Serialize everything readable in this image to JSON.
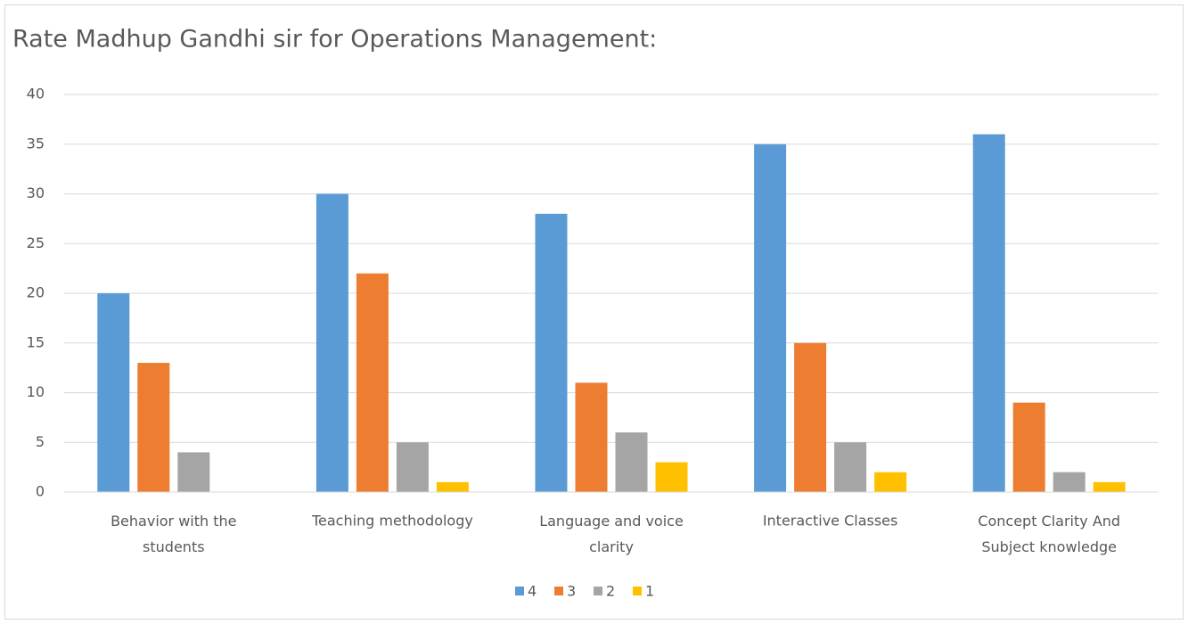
{
  "chart_data": {
    "type": "bar",
    "title": "Rate Madhup Gandhi sir for Operations Management:",
    "categories": [
      "Behavior with the students",
      "Teaching methodology",
      "Language and voice clarity",
      "Interactive Classes",
      "Concept Clarity And Subject knowledge"
    ],
    "series": [
      {
        "name": "4",
        "color": "#5b9bd5",
        "values": [
          20,
          30,
          28,
          35,
          36
        ]
      },
      {
        "name": "3",
        "color": "#ed7d31",
        "values": [
          13,
          22,
          11,
          15,
          9
        ]
      },
      {
        "name": "2",
        "color": "#a5a5a5",
        "values": [
          4,
          5,
          6,
          5,
          2
        ]
      },
      {
        "name": "1",
        "color": "#ffc000",
        "values": [
          0,
          1,
          3,
          2,
          1
        ]
      }
    ],
    "ylim": [
      0,
      40
    ],
    "yticks": [
      0,
      5,
      10,
      15,
      20,
      25,
      30,
      35,
      40
    ],
    "grid": true,
    "legend": "bottom"
  }
}
